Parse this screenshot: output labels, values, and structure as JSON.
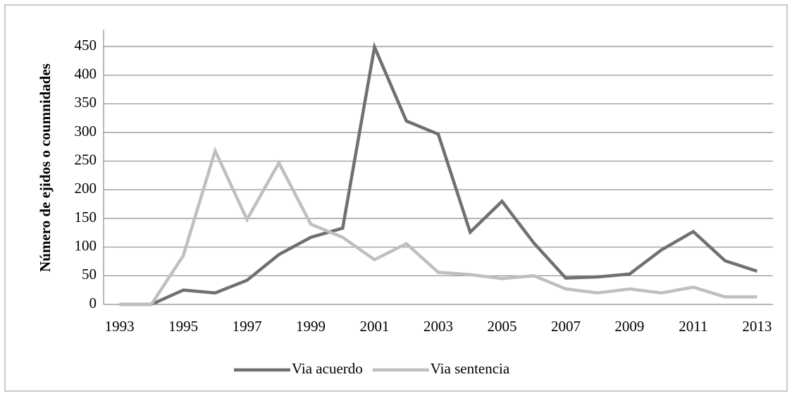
{
  "chart_data": {
    "type": "line",
    "y_label": "Número de ejidos o coumnidades",
    "categories": [
      "1993",
      null,
      "1995",
      null,
      "1997",
      null,
      "1999",
      null,
      "2001",
      null,
      "2003",
      null,
      "2005",
      null,
      "2007",
      null,
      "2009",
      null,
      "2011",
      null,
      "2013"
    ],
    "series": [
      {
        "name": "Via acuerdo",
        "color": "#707070",
        "values": [
          0,
          0,
          25,
          20,
          42,
          87,
          117,
          133,
          449,
          320,
          297,
          126,
          180,
          107,
          46,
          48,
          53,
          95,
          127,
          76,
          58
        ]
      },
      {
        "name": "Via sentencia",
        "color": "#bfbfbf",
        "values": [
          0,
          0,
          85,
          268,
          148,
          247,
          140,
          117,
          78,
          106,
          56,
          52,
          45,
          50,
          27,
          20,
          27,
          20,
          30,
          13,
          13
        ]
      }
    ],
    "ylim": [
      0,
      450
    ],
    "yticks": [
      0,
      50,
      100,
      150,
      200,
      250,
      300,
      350,
      400,
      450
    ],
    "grid": true,
    "legend": "bottom"
  }
}
